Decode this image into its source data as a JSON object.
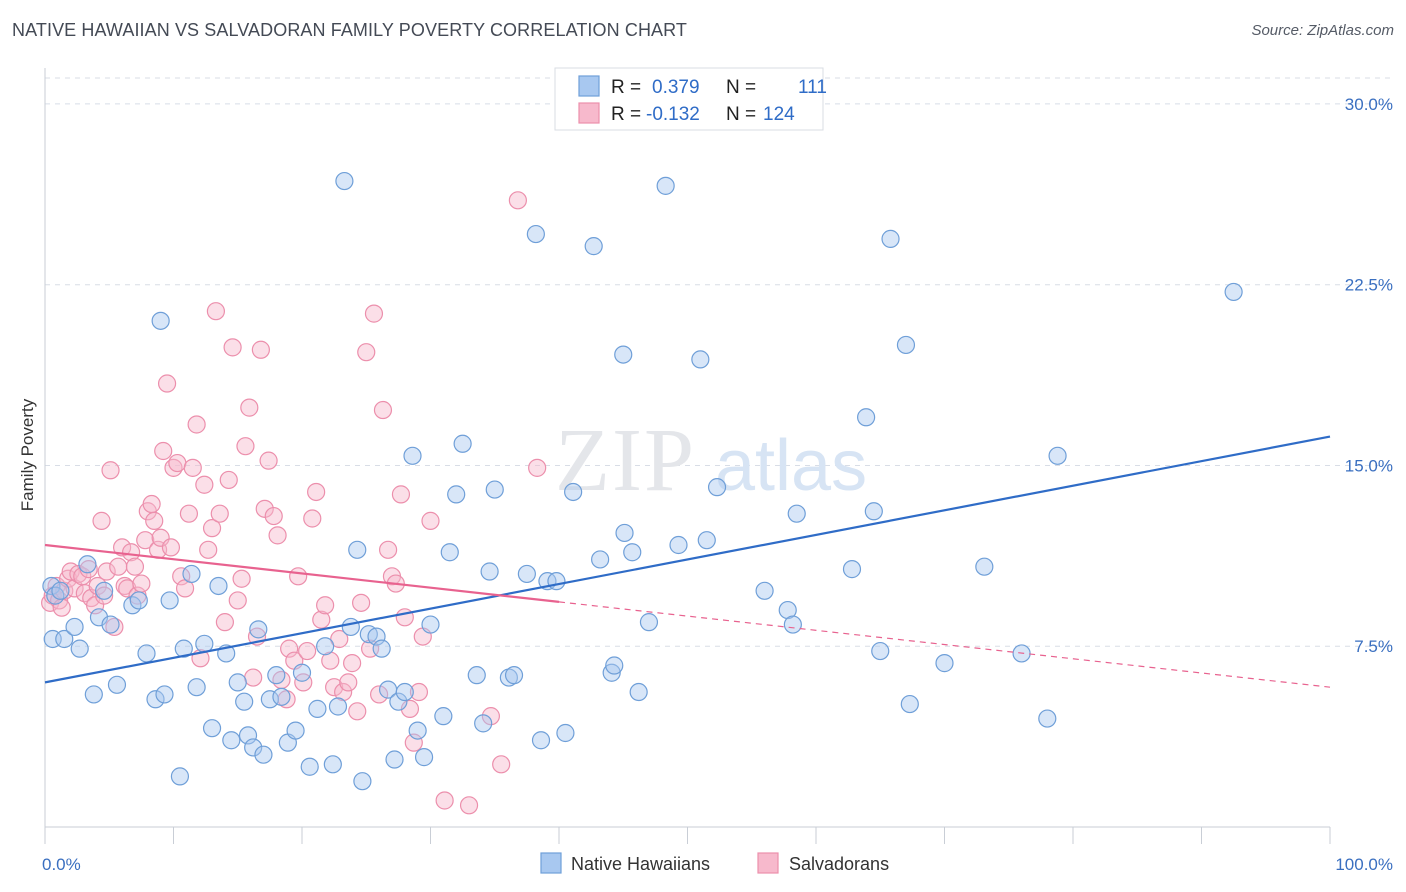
{
  "title": "NATIVE HAWAIIAN VS SALVADORAN FAMILY POVERTY CORRELATION CHART",
  "source": "Source: ZipAtlas.com",
  "watermark": {
    "zip": "ZIP",
    "atlas": "atlas"
  },
  "colors": {
    "blue_fill": "#a8c8f0",
    "blue_stroke": "#6f9fd8",
    "blue_line": "#2f6cc7",
    "pink_fill": "#f7b9cc",
    "pink_stroke": "#ec8fac",
    "pink_line": "#e8628f",
    "grid": "#d8dde6",
    "axis_text": "#3a6fc0"
  },
  "legend": {
    "rows": [
      {
        "r_label": "R =",
        "r_value": "0.379",
        "n_label": "N =",
        "n_value": "111",
        "series": "blue"
      },
      {
        "r_label": "R =",
        "r_value": "-0.132",
        "n_label": "N =",
        "n_value": "124",
        "series": "pink"
      }
    ]
  },
  "chart_data": {
    "type": "scatter",
    "title": "NATIVE HAWAIIAN VS SALVADORAN FAMILY POVERTY CORRELATION CHART",
    "xlabel": "",
    "ylabel": "Family Poverty",
    "xlim": [
      0,
      100
    ],
    "ylim": [
      0,
      31.2
    ],
    "x_tick_labels": [
      "0.0%",
      "100.0%"
    ],
    "y_ticks": [
      7.5,
      15.0,
      22.5,
      30.0
    ],
    "y_tick_labels": [
      "7.5%",
      "15.0%",
      "22.5%",
      "30.0%"
    ],
    "grid": true,
    "legend_position": "top-center",
    "series": [
      {
        "name": "Native Hawaiians",
        "color": "#a8c8f0",
        "trend": {
          "x": [
            0,
            100
          ],
          "y": [
            6.0,
            16.2
          ],
          "dashed_from": null
        },
        "points": [
          [
            0.5,
            10.0
          ],
          [
            0.6,
            7.8
          ],
          [
            0.8,
            9.6
          ],
          [
            1.2,
            9.8
          ],
          [
            1.5,
            7.8
          ],
          [
            2.3,
            8.3
          ],
          [
            2.7,
            7.4
          ],
          [
            3.3,
            10.9
          ],
          [
            3.8,
            5.5
          ],
          [
            4.2,
            8.7
          ],
          [
            4.6,
            9.8
          ],
          [
            5.1,
            8.4
          ],
          [
            5.6,
            5.9
          ],
          [
            6.8,
            9.2
          ],
          [
            7.3,
            9.4
          ],
          [
            7.9,
            7.2
          ],
          [
            8.6,
            5.3
          ],
          [
            9.0,
            21.0
          ],
          [
            9.3,
            5.5
          ],
          [
            9.7,
            9.4
          ],
          [
            10.5,
            2.1
          ],
          [
            10.8,
            7.4
          ],
          [
            11.4,
            10.5
          ],
          [
            11.8,
            5.8
          ],
          [
            12.4,
            7.6
          ],
          [
            13.0,
            4.1
          ],
          [
            13.5,
            10.0
          ],
          [
            14.1,
            7.2
          ],
          [
            14.5,
            3.6
          ],
          [
            15.0,
            6.0
          ],
          [
            15.5,
            5.2
          ],
          [
            15.8,
            3.8
          ],
          [
            16.2,
            3.3
          ],
          [
            16.6,
            8.2
          ],
          [
            17.0,
            3.0
          ],
          [
            17.5,
            5.3
          ],
          [
            18.0,
            6.3
          ],
          [
            18.4,
            5.4
          ],
          [
            18.9,
            3.5
          ],
          [
            19.5,
            4.0
          ],
          [
            20.0,
            6.4
          ],
          [
            20.6,
            2.5
          ],
          [
            21.2,
            4.9
          ],
          [
            21.8,
            7.5
          ],
          [
            22.4,
            2.6
          ],
          [
            22.8,
            5.0
          ],
          [
            23.3,
            26.8
          ],
          [
            23.8,
            8.3
          ],
          [
            24.3,
            11.5
          ],
          [
            24.7,
            1.9
          ],
          [
            25.2,
            8.0
          ],
          [
            25.8,
            7.9
          ],
          [
            26.2,
            7.4
          ],
          [
            26.7,
            5.7
          ],
          [
            27.2,
            2.8
          ],
          [
            27.5,
            5.2
          ],
          [
            28.0,
            5.6
          ],
          [
            28.6,
            15.4
          ],
          [
            29.0,
            4.0
          ],
          [
            29.5,
            2.9
          ],
          [
            30.0,
            8.4
          ],
          [
            31.0,
            4.6
          ],
          [
            31.5,
            11.4
          ],
          [
            32.0,
            13.8
          ],
          [
            32.5,
            15.9
          ],
          [
            33.6,
            6.3
          ],
          [
            34.1,
            4.3
          ],
          [
            34.6,
            10.6
          ],
          [
            35.0,
            14.0
          ],
          [
            36.1,
            6.2
          ],
          [
            36.5,
            6.3
          ],
          [
            37.5,
            10.5
          ],
          [
            38.2,
            24.6
          ],
          [
            38.6,
            3.6
          ],
          [
            39.1,
            10.2
          ],
          [
            39.8,
            10.2
          ],
          [
            40.5,
            3.9
          ],
          [
            41.1,
            13.9
          ],
          [
            42.7,
            24.1
          ],
          [
            43.2,
            11.1
          ],
          [
            44.1,
            6.4
          ],
          [
            44.3,
            6.7
          ],
          [
            45.0,
            19.6
          ],
          [
            45.1,
            12.2
          ],
          [
            45.7,
            11.4
          ],
          [
            46.2,
            5.6
          ],
          [
            47.0,
            8.5
          ],
          [
            48.3,
            26.6
          ],
          [
            49.3,
            11.7
          ],
          [
            51.0,
            19.4
          ],
          [
            51.5,
            11.9
          ],
          [
            52.3,
            14.1
          ],
          [
            56.0,
            9.8
          ],
          [
            57.8,
            9.0
          ],
          [
            58.2,
            8.4
          ],
          [
            58.5,
            13.0
          ],
          [
            62.8,
            10.7
          ],
          [
            63.9,
            17.0
          ],
          [
            64.5,
            13.1
          ],
          [
            65.0,
            7.3
          ],
          [
            65.8,
            24.4
          ],
          [
            67.0,
            20.0
          ],
          [
            67.3,
            5.1
          ],
          [
            70.0,
            6.8
          ],
          [
            73.1,
            10.8
          ],
          [
            76.0,
            7.2
          ],
          [
            78.0,
            4.5
          ],
          [
            78.8,
            15.4
          ],
          [
            92.5,
            22.2
          ]
        ]
      },
      {
        "name": "Salvadorans",
        "color": "#f7b9cc",
        "trend": {
          "x": [
            0,
            100
          ],
          "y": [
            11.7,
            5.8
          ],
          "dashed_from": 40
        },
        "points": [
          [
            0.4,
            9.3
          ],
          [
            0.6,
            9.6
          ],
          [
            0.9,
            10.0
          ],
          [
            1.1,
            9.4
          ],
          [
            1.3,
            9.1
          ],
          [
            1.5,
            9.8
          ],
          [
            1.8,
            10.3
          ],
          [
            2.0,
            10.6
          ],
          [
            2.3,
            9.9
          ],
          [
            2.6,
            10.5
          ],
          [
            2.9,
            10.4
          ],
          [
            3.1,
            9.7
          ],
          [
            3.4,
            10.7
          ],
          [
            3.6,
            9.5
          ],
          [
            3.9,
            9.2
          ],
          [
            4.1,
            10.0
          ],
          [
            4.4,
            12.7
          ],
          [
            4.6,
            9.6
          ],
          [
            4.8,
            10.6
          ],
          [
            5.1,
            14.8
          ],
          [
            5.4,
            8.3
          ],
          [
            5.7,
            10.8
          ],
          [
            6.0,
            11.6
          ],
          [
            6.2,
            10.0
          ],
          [
            6.4,
            9.9
          ],
          [
            6.7,
            11.4
          ],
          [
            7.0,
            10.8
          ],
          [
            7.2,
            9.6
          ],
          [
            7.5,
            10.1
          ],
          [
            7.8,
            11.9
          ],
          [
            8.0,
            13.1
          ],
          [
            8.3,
            13.4
          ],
          [
            8.5,
            12.7
          ],
          [
            8.8,
            11.5
          ],
          [
            9.0,
            12.0
          ],
          [
            9.2,
            15.6
          ],
          [
            9.5,
            18.4
          ],
          [
            9.8,
            11.6
          ],
          [
            10.0,
            14.9
          ],
          [
            10.3,
            15.1
          ],
          [
            10.6,
            10.4
          ],
          [
            10.9,
            9.9
          ],
          [
            11.2,
            13.0
          ],
          [
            11.5,
            14.9
          ],
          [
            11.8,
            16.7
          ],
          [
            12.1,
            7.0
          ],
          [
            12.4,
            14.2
          ],
          [
            12.7,
            11.5
          ],
          [
            13.0,
            12.4
          ],
          [
            13.3,
            21.4
          ],
          [
            13.6,
            13.0
          ],
          [
            14.0,
            8.5
          ],
          [
            14.3,
            14.4
          ],
          [
            14.6,
            19.9
          ],
          [
            15.0,
            9.4
          ],
          [
            15.3,
            10.3
          ],
          [
            15.6,
            15.8
          ],
          [
            15.9,
            17.4
          ],
          [
            16.2,
            6.2
          ],
          [
            16.5,
            7.9
          ],
          [
            16.8,
            19.8
          ],
          [
            17.1,
            13.2
          ],
          [
            17.4,
            15.2
          ],
          [
            17.8,
            12.9
          ],
          [
            18.1,
            12.1
          ],
          [
            18.4,
            6.1
          ],
          [
            18.8,
            5.3
          ],
          [
            19.0,
            7.4
          ],
          [
            19.4,
            6.9
          ],
          [
            19.7,
            10.4
          ],
          [
            20.1,
            6.0
          ],
          [
            20.4,
            7.3
          ],
          [
            20.8,
            12.8
          ],
          [
            21.1,
            13.9
          ],
          [
            21.5,
            8.6
          ],
          [
            21.8,
            9.2
          ],
          [
            22.2,
            6.9
          ],
          [
            22.5,
            5.8
          ],
          [
            22.9,
            7.8
          ],
          [
            23.2,
            5.6
          ],
          [
            23.6,
            6.0
          ],
          [
            23.9,
            6.8
          ],
          [
            24.3,
            4.8
          ],
          [
            24.6,
            9.3
          ],
          [
            25.0,
            19.7
          ],
          [
            25.3,
            7.4
          ],
          [
            25.6,
            21.3
          ],
          [
            26.0,
            5.5
          ],
          [
            26.3,
            17.3
          ],
          [
            26.7,
            11.5
          ],
          [
            27.0,
            10.4
          ],
          [
            27.3,
            10.1
          ],
          [
            27.7,
            13.8
          ],
          [
            28.0,
            8.7
          ],
          [
            28.4,
            4.9
          ],
          [
            28.7,
            3.5
          ],
          [
            29.1,
            5.6
          ],
          [
            29.4,
            7.9
          ],
          [
            30.0,
            12.7
          ],
          [
            31.1,
            1.1
          ],
          [
            33.0,
            0.9
          ],
          [
            34.7,
            4.6
          ],
          [
            35.5,
            2.6
          ],
          [
            36.8,
            26.0
          ],
          [
            38.3,
            14.9
          ]
        ]
      }
    ]
  },
  "bottom_legend": [
    {
      "label": "Native Hawaiians",
      "series": "blue"
    },
    {
      "label": "Salvadorans",
      "series": "pink"
    }
  ]
}
